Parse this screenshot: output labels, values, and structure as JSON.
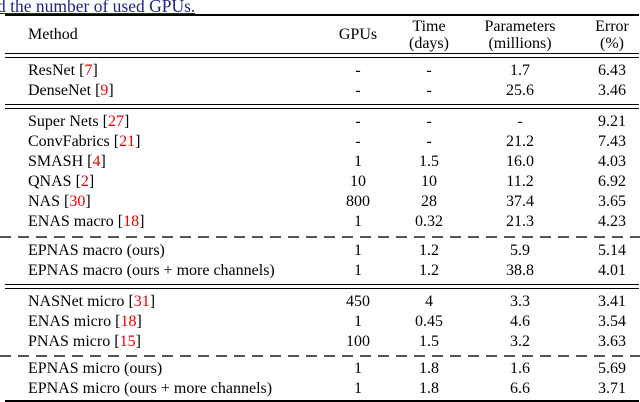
{
  "caption": "d the number of used GPUs.",
  "colors": {
    "caption_text": "#1f1f8f",
    "citation": "#ee0000",
    "rule": "#000000",
    "dashed_rule": "#555555"
  },
  "table": {
    "header": {
      "method": "Method",
      "gpus": "GPUs",
      "time": [
        "Time",
        "(days)"
      ],
      "parameters": [
        "Parameters",
        "(millions)"
      ],
      "error": [
        "Error",
        "(%)"
      ]
    },
    "sections": [
      {
        "rows": [
          {
            "method": "ResNet",
            "cite": "7",
            "gpus": "-",
            "time": "-",
            "params": "1.7",
            "error": "6.43"
          },
          {
            "method": "DenseNet",
            "cite": "9",
            "gpus": "-",
            "time": "-",
            "params": "25.6",
            "error": "3.46"
          }
        ]
      },
      {
        "rows": [
          {
            "method": "Super Nets",
            "cite": "27",
            "gpus": "-",
            "time": "-",
            "params": "-",
            "error": "9.21"
          },
          {
            "method": "ConvFabrics",
            "cite": "21",
            "gpus": "-",
            "time": "-",
            "params": "21.2",
            "error": "7.43"
          },
          {
            "method": "SMASH",
            "cite": "4",
            "gpus": "1",
            "time": "1.5",
            "params": "16.0",
            "error": "4.03"
          },
          {
            "method": "QNAS",
            "cite": "2",
            "gpus": "10",
            "time": "10",
            "params": "11.2",
            "error": "6.92"
          },
          {
            "method": "NAS",
            "cite": "30",
            "gpus": "800",
            "time": "28",
            "params": "37.4",
            "error": "3.65"
          },
          {
            "method": "ENAS macro",
            "cite": "18",
            "gpus": "1",
            "time": "0.32",
            "params": "21.3",
            "error": "4.23"
          }
        ]
      },
      {
        "rows": [
          {
            "method": "EPNAS macro (ours)",
            "cite": null,
            "gpus": "1",
            "time": "1.2",
            "params": "5.9",
            "error": "5.14"
          },
          {
            "method": "EPNAS macro (ours + more channels)",
            "cite": null,
            "gpus": "1",
            "time": "1.2",
            "params": "38.8",
            "error": "4.01"
          }
        ]
      },
      {
        "rows": [
          {
            "method": "NASNet micro",
            "cite": "31",
            "gpus": "450",
            "time": "4",
            "params": "3.3",
            "error": "3.41"
          },
          {
            "method": "ENAS micro",
            "cite": "18",
            "gpus": "1",
            "time": "0.45",
            "params": "4.6",
            "error": "3.54"
          },
          {
            "method": "PNAS micro",
            "cite": "15",
            "gpus": "100",
            "time": "1.5",
            "params": "3.2",
            "error": "3.63"
          }
        ]
      },
      {
        "rows": [
          {
            "method": "EPNAS micro (ours)",
            "cite": null,
            "gpus": "1",
            "time": "1.8",
            "params": "1.6",
            "error": "5.69"
          },
          {
            "method": "EPNAS micro (ours + more channels)",
            "cite": null,
            "gpus": "1",
            "time": "1.8",
            "params": "6.6",
            "error": "3.71"
          }
        ]
      }
    ]
  }
}
